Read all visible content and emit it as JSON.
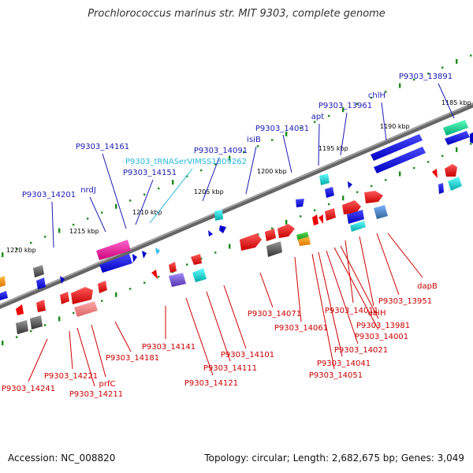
{
  "title": "Prochlorococcus marinus str. MIT 9303, complete genome",
  "footer": {
    "accession": "Accession: NC_008820",
    "summary": "Topology: circular; Length: 2,682,675 bp; Genes: 3,049"
  },
  "colors": {
    "backbone": "#7a7a7a",
    "forward_label": "#1a1ab4",
    "reverse_label": "#cc0000",
    "rna_label": "#29b6e0",
    "tick": "#1a8a1a"
  },
  "ticks": [
    "1185 kbp",
    "1190 kbp",
    "1195 kbp",
    "1200 kbp",
    "1205 kbp",
    "1210 kbp",
    "1215 kbp",
    "1220 kbp"
  ],
  "forward_labels": [
    "P9303_13891",
    "chlH",
    "P9303_13961",
    "apt",
    "P9303_14031",
    "isiB",
    "P9303_14091",
    "P9303_tRNASerVIMSS1309262",
    "P9303_14151",
    "P9303_14161",
    "nrdJ",
    "P9303_14201"
  ],
  "reverse_labels": [
    "dapB",
    "P9303_13951",
    "ubiH",
    "P9303_14011",
    "P9303_13981",
    "P9303_14001",
    "P9303_14021",
    "P9303_14041",
    "P9303_14051",
    "P9303_14061",
    "P9303_14071",
    "P9303_14101",
    "P9303_14111",
    "P9303_14121",
    "P9303_14141",
    "P9303_14181",
    "prfC",
    "P9303_14211",
    "P9303_14221",
    "P9303_14241"
  ]
}
